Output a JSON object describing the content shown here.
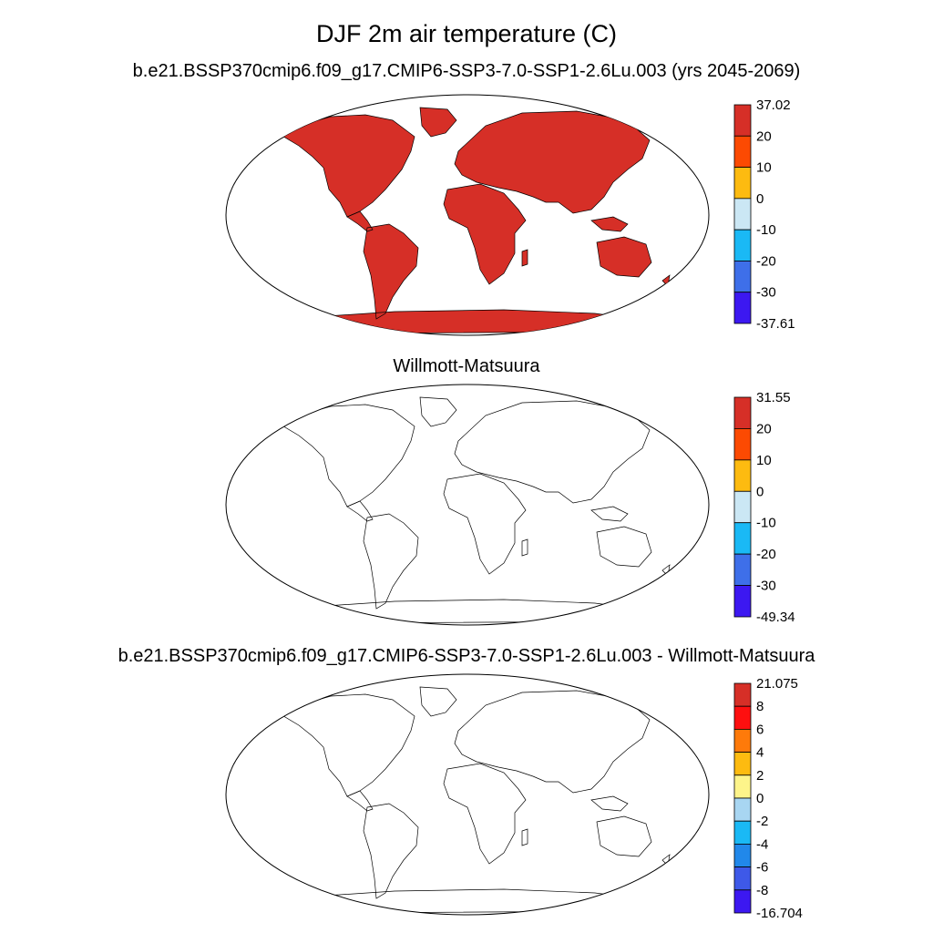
{
  "title": "DJF 2m air temperature (C)",
  "panels": [
    {
      "subtitle": "b.e21.BSSP370cmip6.f09_g17.CMIP6-SSP3-7.0-SSP1-2.6Lu.003 (yrs 2045-2069)",
      "colorbar": {
        "labels": [
          "37.02",
          "20",
          "10",
          "0",
          "-10",
          "-20",
          "-30",
          "-37.61"
        ],
        "colors": [
          "#d62f27",
          "#fc4a02",
          "#fdbb10",
          "#cbe7f4",
          "#1ab9f5",
          "#3e6fe9",
          "#3c18f1"
        ]
      }
    },
    {
      "subtitle": "Willmott-Matsuura",
      "colorbar": {
        "labels": [
          "31.55",
          "20",
          "10",
          "0",
          "-10",
          "-20",
          "-30",
          "-49.34"
        ],
        "colors": [
          "#d62f27",
          "#fc4a02",
          "#fdbb10",
          "#cbe7f4",
          "#1ab9f5",
          "#3e6fe9",
          "#3c18f1"
        ]
      }
    },
    {
      "subtitle": "b.e21.BSSP370cmip6.f09_g17.CMIP6-SSP3-7.0-SSP1-2.6Lu.003 - Willmott-Matsuura",
      "colorbar": {
        "labels": [
          "21.075",
          "8",
          "6",
          "4",
          "2",
          "0",
          "-2",
          "-4",
          "-6",
          "-8",
          "-16.704"
        ],
        "colors": [
          "#d62f27",
          "#fe0f0f",
          "#fe7a0a",
          "#fdbb10",
          "#fdf48a",
          "#a8d6f2",
          "#1ab9f5",
          "#2188ea",
          "#3e59e8",
          "#3c18f1"
        ]
      }
    }
  ]
}
